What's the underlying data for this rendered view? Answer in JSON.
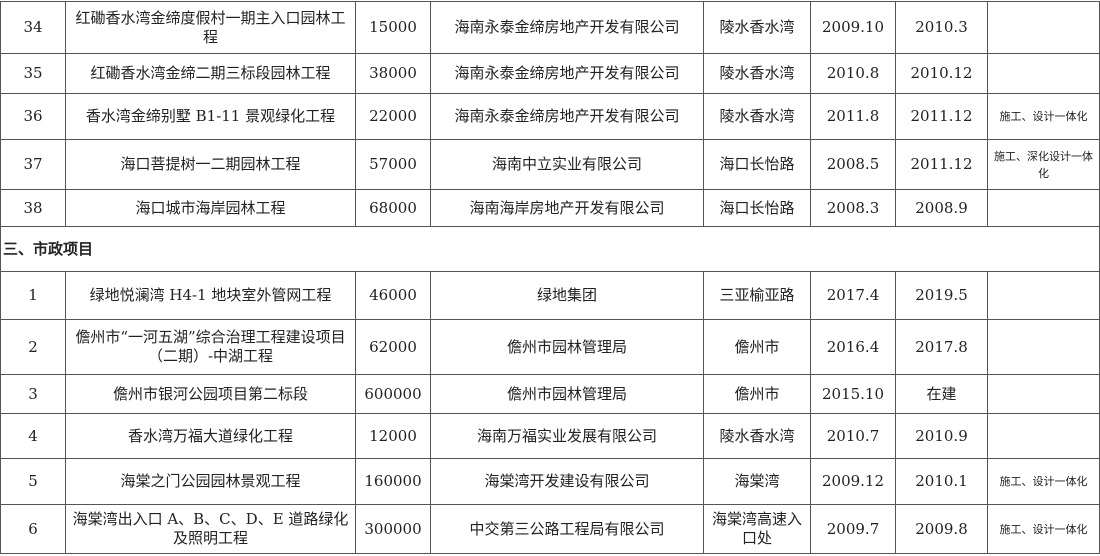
{
  "rows_top": [
    {
      "no": "34",
      "name": "红磡香水湾金缔度假村一期主入口园林工程",
      "amount": "15000",
      "client": "海南永泰金缔房地产开发有限公司",
      "location": "陵水香水湾",
      "start": "2009.10",
      "end": "2010.3",
      "note": ""
    },
    {
      "no": "35",
      "name": "红磡香水湾金缔二期三标段园林工程",
      "amount": "38000",
      "client": "海南永泰金缔房地产开发有限公司",
      "location": "陵水香水湾",
      "start": "2010.8",
      "end": "2010.12",
      "note": ""
    },
    {
      "no": "36",
      "name": "香水湾金缔别墅 B1-11 景观绿化工程",
      "amount": "22000",
      "client": "海南永泰金缔房地产开发有限公司",
      "location": "陵水香水湾",
      "start": "2011.8",
      "end": "2011.12",
      "note": "施工、设计一体化"
    },
    {
      "no": "37",
      "name": "海口菩提树一二期园林工程",
      "amount": "57000",
      "client": "海南中立实业有限公司",
      "location": "海口长怡路",
      "start": "2008.5",
      "end": "2011.12",
      "note": "施工、深化设计一体化"
    },
    {
      "no": "38",
      "name": "海口城市海岸园林工程",
      "amount": "68000",
      "client": "海南海岸房地产开发有限公司",
      "location": "海口长怡路",
      "start": "2008.3",
      "end": "2008.9",
      "note": ""
    }
  ],
  "section_title": "三、市政项目",
  "rows_bottom": [
    {
      "no": "1",
      "name": "绿地悦澜湾 H4-1 地块室外管网工程",
      "amount": "46000",
      "client": "绿地集团",
      "location": "三亚榆亚路",
      "start": "2017.4",
      "end": "2019.5",
      "note": ""
    },
    {
      "no": "2",
      "name": "儋州市“一河五湖”综合治理工程建设项目（二期）-中湖工程",
      "amount": "62000",
      "client": "儋州市园林管理局",
      "location": "儋州市",
      "start": "2016.4",
      "end": "2017.8",
      "note": ""
    },
    {
      "no": "3",
      "name": "儋州市银河公园项目第二标段",
      "amount": "600000",
      "client": "儋州市园林管理局",
      "location": "儋州市",
      "start": "2015.10",
      "end": "在建",
      "note": ""
    },
    {
      "no": "4",
      "name": "香水湾万福大道绿化工程",
      "amount": "12000",
      "client": "海南万福实业发展有限公司",
      "location": "陵水香水湾",
      "start": "2010.7",
      "end": "2010.9",
      "note": ""
    },
    {
      "no": "5",
      "name": "海棠之门公园园林景观工程",
      "amount": "160000",
      "client": "海棠湾开发建设有限公司",
      "location": "海棠湾",
      "start": "2009.12",
      "end": "2010.1",
      "note": "施工、设计一体化"
    },
    {
      "no": "6",
      "name": "海棠湾出入口 A、B、C、D、E 道路绿化及照明工程",
      "amount": "300000",
      "client": "中交第三公路工程局有限公司",
      "location": "海棠湾高速入口处",
      "start": "2009.7",
      "end": "2009.8",
      "note": "施工、设计一体化"
    }
  ]
}
